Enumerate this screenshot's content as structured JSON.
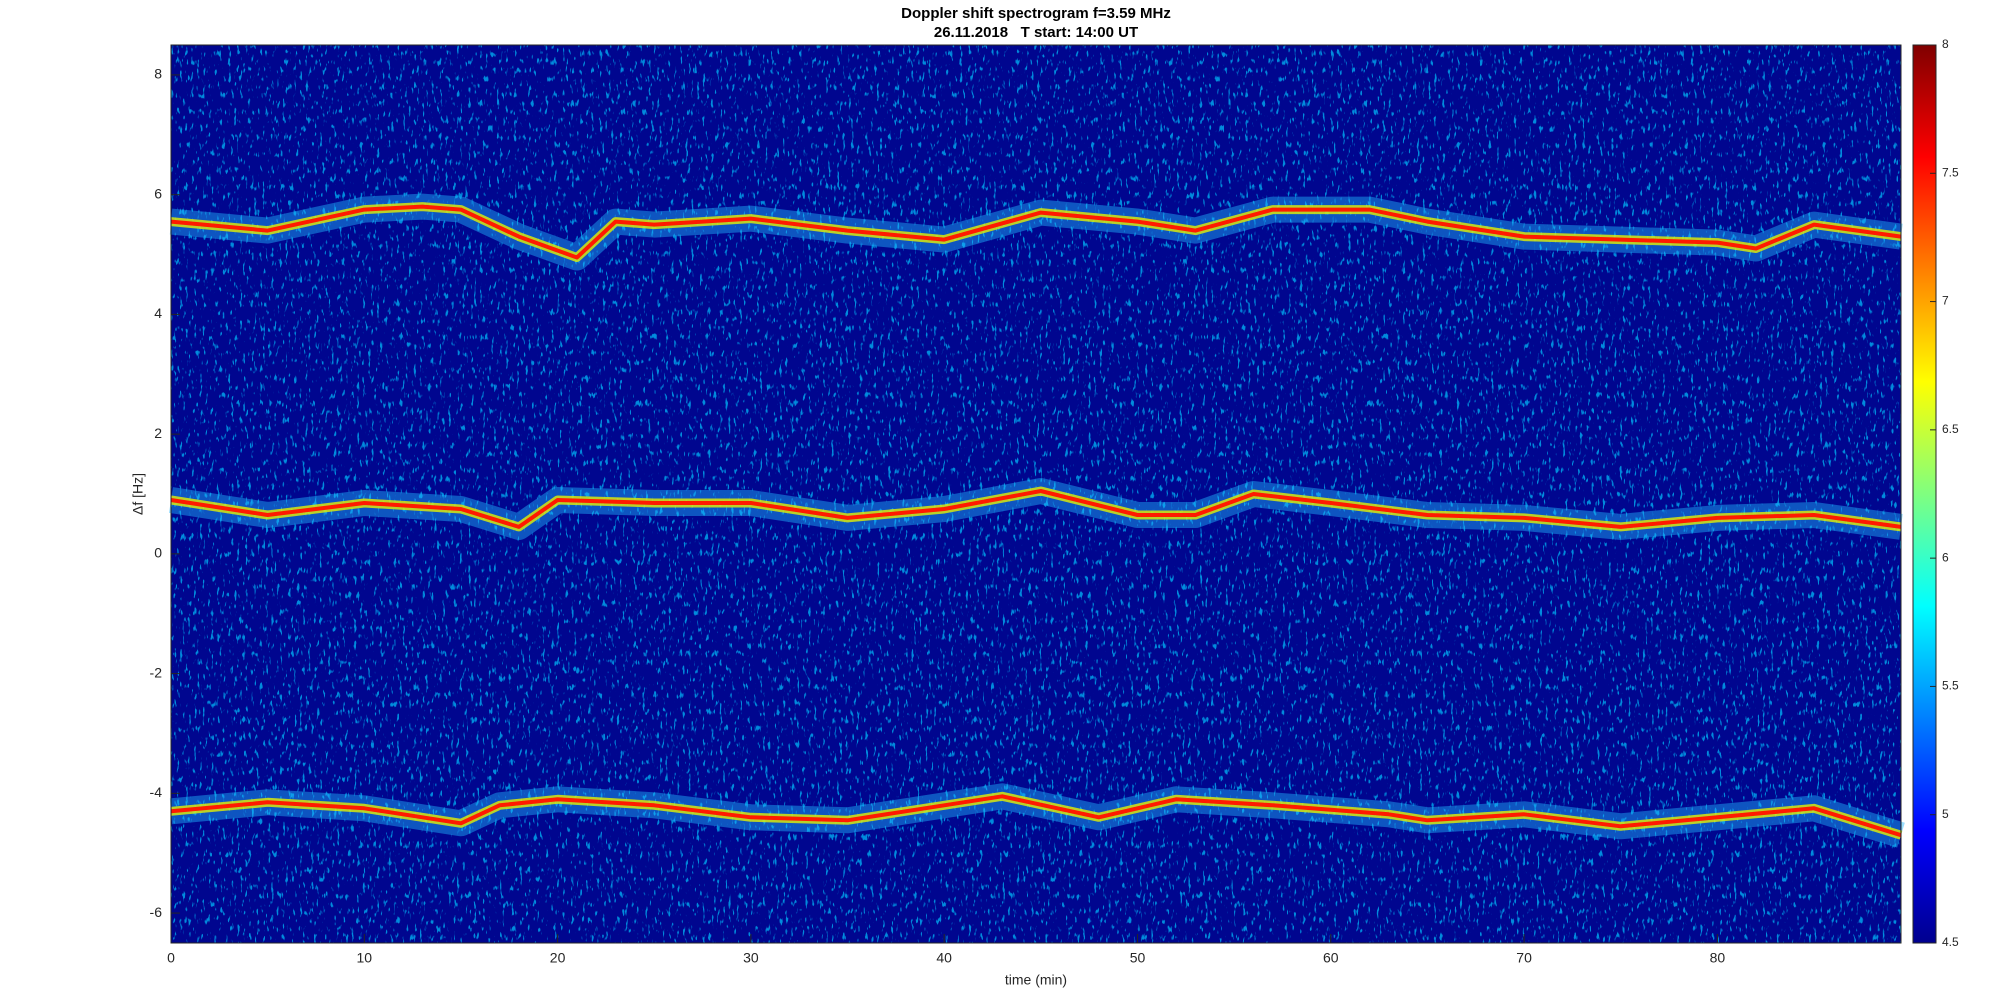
{
  "chart_data": {
    "type": "line",
    "title": "Doppler shift spectrogram f=3.59 MHz",
    "subtitle": "26.11.2018   T start: 14:00 UT",
    "xlabel": "time (min)",
    "ylabel": "Δf [Hz]",
    "xlim": [
      0,
      89.5
    ],
    "xticks": [
      0,
      10,
      20,
      30,
      40,
      50,
      60,
      70,
      80
    ],
    "ylim": [
      -6.5,
      8.5
    ],
    "yticks": [
      -6,
      -4,
      -2,
      0,
      2,
      4,
      6,
      8
    ],
    "colorbar": {
      "clim": [
        4.5,
        8
      ],
      "ticks": [
        4.5,
        5,
        5.5,
        6,
        6.5,
        7,
        7.5,
        8
      ]
    },
    "series": [
      {
        "color": "#ff1a00",
        "x": [
          0,
          5,
          10,
          13,
          15,
          18,
          21,
          23,
          25,
          30,
          35,
          40,
          45,
          50,
          53,
          57,
          62,
          65,
          70,
          75,
          80,
          82,
          85,
          89.5
        ],
        "values": [
          5.55,
          5.4,
          5.75,
          5.8,
          5.75,
          5.3,
          4.95,
          5.55,
          5.5,
          5.6,
          5.4,
          5.25,
          5.7,
          5.55,
          5.4,
          5.75,
          5.75,
          5.55,
          5.3,
          5.25,
          5.2,
          5.1,
          5.5,
          5.3
        ]
      },
      {
        "color": "#ff1a00",
        "x": [
          0,
          5,
          10,
          15,
          18,
          20,
          25,
          30,
          35,
          40,
          45,
          50,
          53,
          56,
          60,
          65,
          70,
          75,
          80,
          85,
          89.5
        ],
        "values": [
          0.9,
          0.65,
          0.85,
          0.75,
          0.45,
          0.9,
          0.85,
          0.85,
          0.6,
          0.75,
          1.05,
          0.65,
          0.65,
          1.0,
          0.85,
          0.65,
          0.6,
          0.45,
          0.6,
          0.65,
          0.45
        ]
      },
      {
        "color": "#ff1a00",
        "x": [
          0,
          5,
          10,
          15,
          17,
          20,
          25,
          30,
          35,
          40,
          43,
          48,
          52,
          57,
          63,
          65,
          70,
          75,
          80,
          85,
          89.5
        ],
        "values": [
          -4.3,
          -4.15,
          -4.25,
          -4.5,
          -4.2,
          -4.1,
          -4.2,
          -4.4,
          -4.45,
          -4.2,
          -4.05,
          -4.4,
          -4.1,
          -4.2,
          -4.35,
          -4.45,
          -4.35,
          -4.55,
          -4.4,
          -4.25,
          -4.7
        ]
      }
    ]
  }
}
